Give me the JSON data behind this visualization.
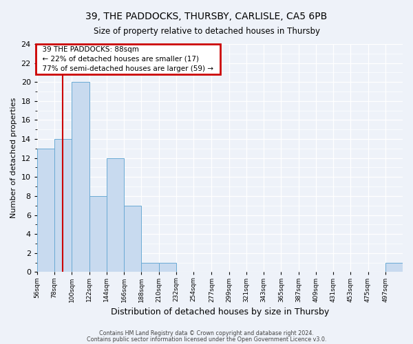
{
  "title": "39, THE PADDOCKS, THURSBY, CARLISLE, CA5 6PB",
  "subtitle": "Size of property relative to detached houses in Thursby",
  "xlabel": "Distribution of detached houses by size in Thursby",
  "ylabel": "Number of detached properties",
  "bin_labels": [
    "56sqm",
    "78sqm",
    "100sqm",
    "122sqm",
    "144sqm",
    "166sqm",
    "188sqm",
    "210sqm",
    "232sqm",
    "254sqm",
    "277sqm",
    "299sqm",
    "321sqm",
    "343sqm",
    "365sqm",
    "387sqm",
    "409sqm",
    "431sqm",
    "453sqm",
    "475sqm",
    "497sqm"
  ],
  "bin_edges": [
    56,
    78,
    100,
    122,
    144,
    166,
    188,
    210,
    232,
    254,
    277,
    299,
    321,
    343,
    365,
    387,
    409,
    431,
    453,
    475,
    497,
    519
  ],
  "bar_heights": [
    13,
    14,
    20,
    8,
    12,
    7,
    1,
    1,
    0,
    0,
    0,
    0,
    0,
    0,
    0,
    0,
    0,
    0,
    0,
    0,
    1
  ],
  "bar_color": "#c8daef",
  "bar_edge_color": "#6aaad4",
  "ylim": [
    0,
    24
  ],
  "yticks": [
    0,
    2,
    4,
    6,
    8,
    10,
    12,
    14,
    16,
    18,
    20,
    22,
    24
  ],
  "property_size": 88,
  "annotation_line1": "39 THE PADDOCKS: 88sqm",
  "annotation_line2": "← 22% of detached houses are smaller (17)",
  "annotation_line3": "77% of semi-detached houses are larger (59) →",
  "annotation_box_color": "#ffffff",
  "annotation_box_edge": "#cc0000",
  "red_line_color": "#cc0000",
  "footer1": "Contains HM Land Registry data © Crown copyright and database right 2024.",
  "footer2": "Contains public sector information licensed under the Open Government Licence v3.0.",
  "background_color": "#eef2f9",
  "grid_color": "#ffffff"
}
